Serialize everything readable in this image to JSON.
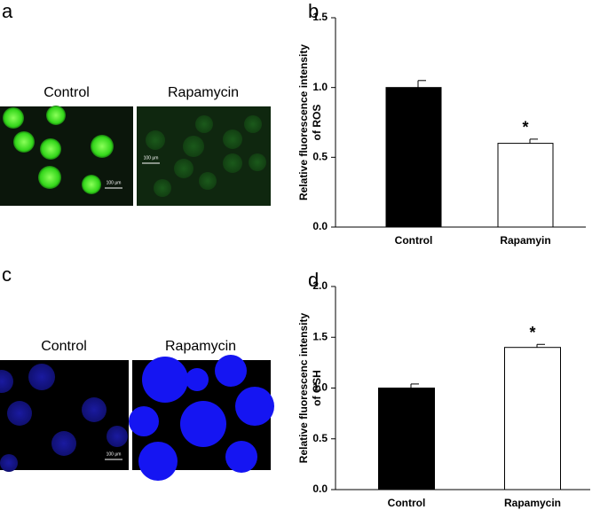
{
  "panels": [
    {
      "label": "a",
      "images": [
        {
          "caption": "Control",
          "scale": "100 μm"
        },
        {
          "caption": "Rapamycin",
          "scale": "100 μm"
        }
      ]
    },
    {
      "label": "b"
    },
    {
      "label": "c",
      "images": [
        {
          "caption": "Control",
          "scale": "100 μm"
        },
        {
          "caption": "Rapamycin"
        }
      ]
    },
    {
      "label": "d"
    }
  ],
  "chart_data": [
    {
      "type": "bar",
      "ylabel": [
        "Relative fluorescence intensity",
        "of ROS"
      ],
      "categories": [
        "Control",
        "Rapamyin"
      ],
      "values": [
        1.0,
        0.6
      ],
      "errors": [
        0.05,
        0.03
      ],
      "colors": [
        "#000000",
        "#ffffff"
      ],
      "annotation": "*",
      "ylim": [
        0,
        1.5
      ],
      "yticks": [
        {
          "value": 0,
          "label": "0.0"
        },
        {
          "value": 0.5,
          "label": "0.5"
        },
        {
          "value": 1,
          "label": "1.0"
        },
        {
          "value": 1.5,
          "label": "1.5"
        }
      ]
    },
    {
      "type": "bar",
      "ylabel": [
        "Relative fluorescenc intensity",
        "of GSH"
      ],
      "categories": [
        "Control",
        "Rapamycin"
      ],
      "values": [
        1.0,
        1.4
      ],
      "errors": [
        0.04,
        0.03
      ],
      "colors": [
        "#000000",
        "#ffffff"
      ],
      "annotation": "*",
      "ylim": [
        0,
        2
      ],
      "yticks": [
        {
          "value": 0,
          "label": "0.0"
        },
        {
          "value": 0.5,
          "label": "0.5"
        },
        {
          "value": 1,
          "label": "1.0"
        },
        {
          "value": 1.5,
          "label": "1.5"
        },
        {
          "value": 2,
          "label": "2.0"
        }
      ]
    }
  ]
}
